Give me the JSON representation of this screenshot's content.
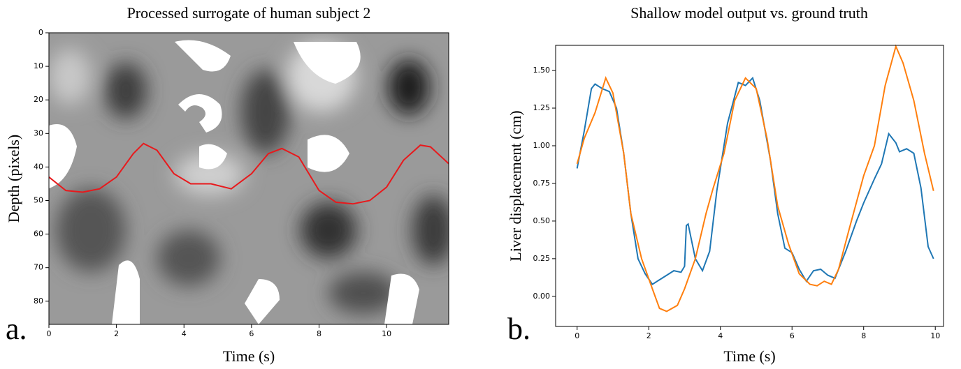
{
  "chart_data": [
    {
      "type": "line",
      "title": "Processed surrogate of human subject 2",
      "panel_label": "a.",
      "x_label": "Time (s)",
      "y_label": "Depth (pixels)",
      "xlim": [
        0,
        11.84
      ],
      "ylim": [
        86.9,
        0
      ],
      "xticks": [
        0,
        2,
        4,
        6,
        8,
        10
      ],
      "yticks": [
        0,
        10,
        20,
        30,
        40,
        50,
        60,
        70,
        80
      ],
      "series": [
        {
          "color": "#e8191c",
          "x": [
            0,
            0.5,
            1,
            1.5,
            2,
            2.5,
            2.8,
            3.2,
            3.7,
            4.2,
            4.8,
            5.4,
            6,
            6.5,
            6.9,
            7.4,
            8,
            8.5,
            9,
            9.5,
            10,
            10.5,
            11,
            11.3,
            11.84
          ],
          "values": [
            43,
            47,
            47.5,
            46.5,
            43,
            36,
            33,
            35,
            42,
            45,
            45,
            46.5,
            42,
            36,
            34.5,
            37,
            47,
            50.5,
            51,
            50,
            46,
            38,
            33.5,
            34,
            39
          ]
        }
      ]
    },
    {
      "type": "line",
      "title": "Shallow model output vs. ground truth",
      "panel_label": "b.",
      "x_label": "Time (s)",
      "y_label": "Liver displacement (cm)",
      "xlim": [
        -0.6,
        10.23
      ],
      "ylim": [
        -0.2,
        1.667
      ],
      "xticks": [
        0,
        2,
        4,
        6,
        8,
        10
      ],
      "yticks": [
        {
          "value": 0,
          "label": "0.00"
        },
        {
          "value": 0.25,
          "label": "0.25"
        },
        {
          "value": 0.5,
          "label": "0.50"
        },
        {
          "value": 0.75,
          "label": "0.75"
        },
        {
          "value": 1,
          "label": "1.00"
        },
        {
          "value": 1.25,
          "label": "1.25"
        },
        {
          "value": 1.5,
          "label": "1.50"
        }
      ],
      "series": [
        {
          "color": "#1f77b4",
          "x": [
            0,
            0.2,
            0.4,
            0.5,
            0.7,
            0.9,
            1.1,
            1.3,
            1.5,
            1.7,
            1.9,
            2.1,
            2.3,
            2.5,
            2.7,
            2.9,
            3.0,
            3.05,
            3.1,
            3.3,
            3.5,
            3.7,
            3.9,
            4.2,
            4.5,
            4.7,
            4.9,
            5.1,
            5.4,
            5.6,
            5.8,
            6.0,
            6.2,
            6.4,
            6.6,
            6.8,
            7.0,
            7.2,
            7.5,
            7.8,
            8.0,
            8.3,
            8.5,
            8.7,
            8.9,
            9.0,
            9.2,
            9.4,
            9.6,
            9.8,
            9.95
          ],
          "values": [
            0.85,
            1.1,
            1.38,
            1.41,
            1.38,
            1.36,
            1.25,
            0.95,
            0.55,
            0.25,
            0.15,
            0.08,
            0.11,
            0.14,
            0.17,
            0.16,
            0.2,
            0.47,
            0.48,
            0.25,
            0.17,
            0.3,
            0.7,
            1.15,
            1.42,
            1.4,
            1.45,
            1.3,
            0.9,
            0.55,
            0.32,
            0.29,
            0.18,
            0.1,
            0.17,
            0.18,
            0.14,
            0.12,
            0.3,
            0.5,
            0.62,
            0.78,
            0.88,
            1.08,
            1.02,
            0.96,
            0.98,
            0.95,
            0.72,
            0.33,
            0.25
          ]
        },
        {
          "color": "#ff7f0e",
          "x": [
            0,
            0.2,
            0.5,
            0.8,
            1.0,
            1.3,
            1.5,
            1.8,
            2.1,
            2.3,
            2.5,
            2.8,
            3.0,
            3.3,
            3.6,
            3.8,
            4.1,
            4.4,
            4.7,
            5.0,
            5.3,
            5.6,
            5.9,
            6.2,
            6.5,
            6.7,
            6.9,
            7.1,
            7.3,
            7.6,
            8.0,
            8.3,
            8.6,
            8.9,
            9.1,
            9.4,
            9.7,
            9.95
          ],
          "values": [
            0.88,
            1.05,
            1.22,
            1.45,
            1.35,
            0.95,
            0.55,
            0.25,
            0.05,
            -0.08,
            -0.1,
            -0.06,
            0.05,
            0.25,
            0.55,
            0.72,
            0.95,
            1.3,
            1.45,
            1.38,
            1.05,
            0.6,
            0.35,
            0.15,
            0.08,
            0.07,
            0.1,
            0.08,
            0.18,
            0.45,
            0.8,
            1.0,
            1.4,
            1.66,
            1.55,
            1.3,
            0.95,
            0.7
          ]
        }
      ]
    }
  ]
}
